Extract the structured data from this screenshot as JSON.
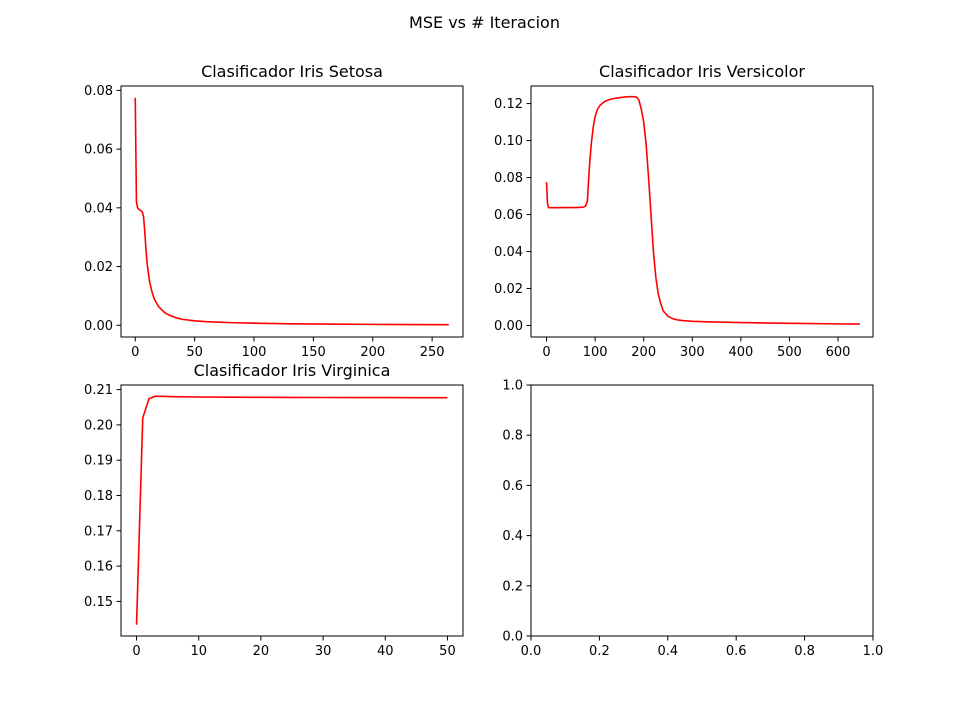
{
  "figure": {
    "suptitle": "MSE vs # Iteracion"
  },
  "chart_data": [
    {
      "type": "line",
      "title": "Clasificador Iris Setosa",
      "xlabel": "",
      "ylabel": "",
      "xlim": [
        -12,
        276
      ],
      "ylim": [
        -0.004,
        0.0815
      ],
      "xticks": [
        0,
        50,
        100,
        150,
        200,
        250
      ],
      "yticks": [
        0.0,
        0.02,
        0.04,
        0.06,
        0.08
      ],
      "ytick_decimals": 2,
      "grid": false,
      "series": [
        {
          "color": "#ff0000",
          "x": [
            0,
            1,
            2,
            3,
            4,
            5,
            6,
            7,
            8,
            9,
            10,
            12,
            14,
            16,
            18,
            20,
            25,
            30,
            35,
            40,
            50,
            60,
            80,
            100,
            130,
            160,
            200,
            230,
            264
          ],
          "y": [
            0.0775,
            0.042,
            0.04,
            0.0395,
            0.0392,
            0.039,
            0.0385,
            0.037,
            0.032,
            0.026,
            0.021,
            0.015,
            0.0115,
            0.009,
            0.0075,
            0.0062,
            0.0042,
            0.0032,
            0.0025,
            0.002,
            0.0015,
            0.0012,
            0.0009,
            0.0007,
            0.0005,
            0.0004,
            0.0003,
            0.00025,
            0.0002
          ]
        }
      ]
    },
    {
      "type": "line",
      "title": "Clasificador Iris Versicolor",
      "xlabel": "",
      "ylabel": "",
      "xlim": [
        -32,
        672
      ],
      "ylim": [
        -0.0062,
        0.1295
      ],
      "xticks": [
        0,
        100,
        200,
        300,
        400,
        500,
        600
      ],
      "yticks": [
        0.0,
        0.02,
        0.04,
        0.06,
        0.08,
        0.1,
        0.12
      ],
      "ytick_decimals": 2,
      "grid": false,
      "series": [
        {
          "color": "#ff0000",
          "x": [
            0,
            2,
            4,
            10,
            20,
            40,
            60,
            75,
            80,
            84,
            88,
            92,
            96,
            100,
            105,
            110,
            120,
            130,
            140,
            150,
            160,
            170,
            180,
            185,
            190,
            195,
            200,
            205,
            210,
            215,
            220,
            225,
            230,
            235,
            240,
            250,
            260,
            270,
            280,
            300,
            330,
            400,
            500,
            600,
            645
          ],
          "y": [
            0.0775,
            0.066,
            0.0638,
            0.0637,
            0.0637,
            0.0638,
            0.0638,
            0.064,
            0.0645,
            0.067,
            0.085,
            0.098,
            0.107,
            0.113,
            0.117,
            0.119,
            0.1212,
            0.1222,
            0.1228,
            0.1232,
            0.1235,
            0.1237,
            0.1237,
            0.1235,
            0.122,
            0.117,
            0.11,
            0.098,
            0.08,
            0.06,
            0.04,
            0.026,
            0.017,
            0.012,
            0.008,
            0.005,
            0.0037,
            0.003,
            0.0027,
            0.0023,
            0.002,
            0.0016,
            0.0012,
            0.0009,
            0.0008
          ]
        }
      ]
    },
    {
      "type": "line",
      "title": "Clasificador Iris Virginica",
      "xlabel": "",
      "ylabel": "",
      "xlim": [
        -2.5,
        52.5
      ],
      "ylim": [
        0.1402,
        0.2113
      ],
      "xticks": [
        0,
        10,
        20,
        30,
        40,
        50
      ],
      "yticks": [
        0.15,
        0.16,
        0.17,
        0.18,
        0.19,
        0.2,
        0.21
      ],
      "ytick_decimals": 2,
      "grid": false,
      "series": [
        {
          "color": "#ff0000",
          "x": [
            0,
            1,
            2,
            3,
            4,
            6,
            10,
            15,
            20,
            25,
            30,
            35,
            40,
            45,
            50
          ],
          "y": [
            0.1434,
            0.202,
            0.2074,
            0.2081,
            0.2081,
            0.208,
            0.2079,
            0.20785,
            0.2078,
            0.20778,
            0.20776,
            0.20774,
            0.20773,
            0.20772,
            0.2077
          ]
        }
      ]
    },
    {
      "type": "line",
      "title": "",
      "xlabel": "",
      "ylabel": "",
      "xlim": [
        0,
        1
      ],
      "ylim": [
        0,
        1
      ],
      "xticks": [
        0.0,
        0.2,
        0.4,
        0.6,
        0.8,
        1.0
      ],
      "yticks": [
        0.0,
        0.2,
        0.4,
        0.6,
        0.8,
        1.0
      ],
      "xtick_decimals": 1,
      "ytick_decimals": 1,
      "grid": false,
      "series": []
    }
  ]
}
